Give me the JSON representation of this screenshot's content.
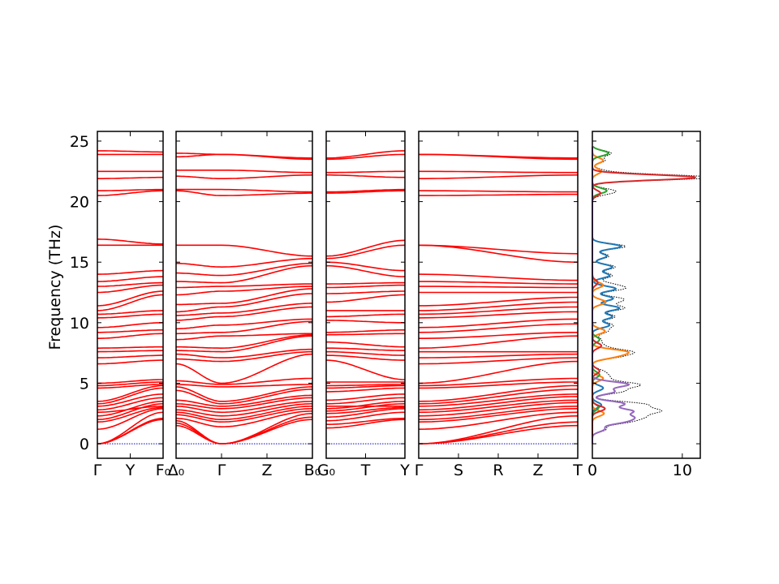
{
  "chart_data": {
    "type": "line",
    "ylabel": "Frequency (THz)",
    "ylim": [
      -1.2,
      25.8
    ],
    "yticks": [
      0,
      5,
      10,
      15,
      20,
      25
    ],
    "colors": {
      "band": "#ff0000",
      "zero_line": "#0000cc",
      "dos_total": "#000000",
      "axis": "#000000"
    },
    "dos_xticks": [
      0,
      10
    ],
    "dos_xlim": [
      0,
      12
    ],
    "band_segments": [
      {
        "labels": [
          "Γ",
          "Y",
          "F₀"
        ],
        "levels_start": [
          0,
          0,
          0,
          1.2,
          1.8,
          2.0,
          2.3,
          2.6,
          2.8,
          3.1,
          3.3,
          3.5,
          4.6,
          4.8,
          5.0,
          6.6,
          7.1,
          7.6,
          7.9,
          8.7,
          9.2,
          9.6,
          10.4,
          10.7,
          11.0,
          11.4,
          12.5,
          13.0,
          13.4,
          14.0,
          16.4,
          16.9,
          20.5,
          20.9,
          21.9,
          22.5,
          23.9,
          24.2
        ],
        "levels_end": [
          2.0,
          2.1,
          2.6,
          2.9,
          3.0,
          3.3,
          3.5,
          3.1,
          3.8,
          4.1,
          4.6,
          4.8,
          4.9,
          5.1,
          5.3,
          6.9,
          7.3,
          7.7,
          8.0,
          9.1,
          9.4,
          10.0,
          10.7,
          11.0,
          12.3,
          12.6,
          13.1,
          13.3,
          13.8,
          14.3,
          16.4,
          16.5,
          20.9,
          21.0,
          22.0,
          22.5,
          23.9,
          24.1
        ]
      },
      {
        "labels": [
          "Δ₀",
          "Γ",
          "Z",
          "B₀"
        ],
        "levels_start": [
          1.5,
          1.7,
          1.9,
          2.1,
          2.4,
          2.6,
          2.8,
          3.1,
          3.3,
          3.6,
          4.4,
          4.7,
          4.9,
          5.2,
          6.6,
          7.0,
          7.4,
          7.7,
          8.0,
          8.6,
          9.1,
          9.5,
          10.2,
          10.6,
          10.9,
          11.5,
          12.3,
          12.9,
          13.4,
          14.1,
          14.9,
          16.4,
          20.9,
          21.0,
          22.1,
          22.6,
          23.7,
          24.0
        ],
        "levels_mid": [
          0,
          0,
          0,
          1.4,
          1.8,
          2.0,
          2.3,
          2.6,
          2.9,
          3.1,
          3.3,
          3.5,
          4.7,
          4.9,
          5.0,
          6.8,
          7.1,
          7.6,
          7.9,
          8.9,
          9.2,
          9.8,
          10.5,
          10.8,
          11.3,
          11.6,
          12.6,
          13.0,
          13.3,
          13.9,
          14.6,
          16.4,
          20.5,
          21.0,
          21.9,
          22.6,
          23.9,
          23.9
        ],
        "levels_end": [
          2.0,
          2.2,
          2.5,
          2.7,
          2.9,
          3.1,
          3.3,
          3.5,
          3.8,
          4.0,
          4.5,
          4.7,
          4.9,
          5.4,
          7.4,
          7.6,
          7.8,
          8.9,
          9.0,
          9.1,
          10.1,
          10.3,
          11.3,
          11.6,
          12.4,
          12.8,
          13.0,
          13.2,
          14.7,
          14.9,
          15.3,
          15.5,
          20.7,
          20.8,
          22.2,
          22.4,
          23.5,
          23.6
        ]
      },
      {
        "labels": [
          "G₀",
          "T",
          "Y"
        ],
        "levels_start": [
          1.3,
          1.6,
          1.9,
          2.2,
          2.5,
          2.7,
          2.9,
          3.1,
          3.3,
          3.6,
          4.3,
          4.6,
          4.8,
          5.1,
          6.9,
          7.3,
          7.6,
          7.9,
          8.4,
          9.0,
          9.2,
          10.2,
          10.5,
          11.0,
          11.7,
          12.4,
          12.9,
          13.2,
          14.7,
          15.0,
          15.3,
          15.5,
          20.7,
          20.8,
          22.2,
          22.4,
          23.5,
          23.6
        ],
        "levels_end": [
          2.0,
          2.1,
          2.6,
          2.9,
          3.0,
          3.3,
          3.5,
          3.1,
          3.8,
          4.1,
          4.6,
          4.8,
          4.9,
          5.1,
          5.3,
          6.9,
          7.3,
          7.7,
          8.0,
          9.1,
          9.4,
          10.0,
          10.7,
          11.0,
          12.3,
          12.6,
          13.1,
          13.3,
          13.8,
          14.3,
          16.4,
          16.8,
          20.9,
          21.0,
          22.0,
          22.5,
          23.9,
          24.2
        ]
      },
      {
        "labels": [
          "Γ",
          "S",
          "R",
          "Z",
          "T"
        ],
        "levels_start": [
          0,
          0,
          0,
          1.2,
          1.8,
          2.0,
          2.3,
          2.6,
          2.8,
          3.1,
          3.3,
          3.5,
          4.6,
          4.8,
          5.0,
          6.6,
          7.1,
          7.6,
          7.9,
          8.7,
          9.2,
          9.6,
          10.4,
          10.7,
          11.0,
          11.4,
          12.5,
          13.0,
          13.4,
          14.0,
          16.4,
          16.4,
          20.5,
          20.9,
          21.9,
          22.5,
          23.9,
          23.9
        ],
        "levels_end": [
          1.5,
          1.8,
          2.3,
          2.6,
          2.9,
          3.1,
          3.4,
          3.6,
          3.9,
          4.1,
          4.5,
          4.8,
          5.1,
          5.4,
          6.8,
          7.1,
          7.4,
          7.6,
          8.9,
          9.2,
          9.9,
          10.3,
          10.9,
          11.3,
          11.7,
          12.1,
          12.5,
          12.9,
          13.2,
          13.5,
          15.0,
          15.7,
          20.6,
          20.8,
          22.2,
          22.4,
          23.5,
          23.6
        ]
      }
    ],
    "dos_series": [
      {
        "color": "#1f77b4",
        "peaks": [
          [
            16.3,
            3.2
          ],
          [
            15.5,
            1.6
          ],
          [
            14.6,
            2.2
          ],
          [
            13.9,
            1.9
          ],
          [
            12.8,
            2.6
          ],
          [
            12.0,
            2.3
          ],
          [
            11.2,
            3.0
          ],
          [
            10.5,
            2.2
          ],
          [
            9.8,
            1.9
          ],
          [
            4.6,
            1.2
          ],
          [
            3.2,
            1.0
          ]
        ]
      },
      {
        "color": "#ff7f0e",
        "peaks": [
          [
            23.4,
            1.2
          ],
          [
            22.5,
            1.0
          ],
          [
            13.1,
            1.2
          ],
          [
            11.7,
            1.5
          ],
          [
            9.3,
            1.4
          ],
          [
            7.6,
            3.5
          ],
          [
            7.2,
            2.2
          ],
          [
            5.4,
            1.2
          ],
          [
            2.5,
            1.3
          ]
        ]
      },
      {
        "color": "#2ca02c",
        "peaks": [
          [
            24.0,
            1.8
          ],
          [
            20.9,
            1.6
          ],
          [
            8.6,
            0.8
          ],
          [
            5.7,
            0.8
          ],
          [
            3.0,
            0.7
          ]
        ]
      },
      {
        "color": "#d62728",
        "peaks": [
          [
            22.0,
            11.5
          ],
          [
            20.7,
            0.9
          ],
          [
            13.3,
            0.6
          ],
          [
            8.1,
            1.0
          ],
          [
            6.0,
            0.8
          ],
          [
            2.9,
            1.4
          ]
        ]
      },
      {
        "color": "#9467bd",
        "peaks": [
          [
            4.9,
            4.0
          ],
          [
            4.3,
            2.4
          ],
          [
            3.3,
            3.5
          ],
          [
            2.7,
            4.2
          ],
          [
            2.2,
            3.8
          ],
          [
            1.8,
            3.0
          ],
          [
            1.2,
            1.3
          ]
        ]
      }
    ]
  }
}
